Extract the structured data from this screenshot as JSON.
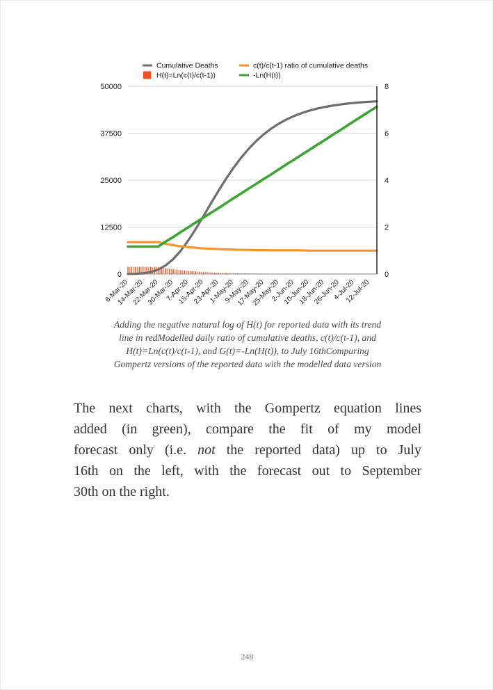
{
  "page": {
    "number": "248"
  },
  "caption": {
    "lines": [
      "Adding the negative natural log of H(t) for reported data with its trend",
      "line in redModelled daily ratio of cumulative deaths, c(t)/c(t-1), and",
      "H(t)=Ln(c(t)/c(t-1), and G(t)=-Ln(H(t)), to July 16thComparing",
      "Gompertz versions of the reported data with the modelled data version"
    ]
  },
  "body": {
    "line1": "The next charts, with the Gompertz equation lines",
    "line2": "added (in green), compare the fit of my model",
    "line3_before": "forecast only (i.e. ",
    "line3_em": "not",
    "line3_after": " the reported data) up to July",
    "line4": "16th on the left, with the forecast out to September",
    "line5": "30th on the right."
  },
  "chart_data": {
    "type": "combo",
    "title": "",
    "legend_position": "top",
    "grid": true,
    "x_tick_labels": [
      "6-Mar-20",
      "14-Mar-20",
      "22-Mar-20",
      "30-Mar-20",
      "7-Apr-20",
      "15-Apr-20",
      "23-Apr-20",
      "1-May-20",
      "9-May-20",
      "17-May-20",
      "25-May-20",
      "2-Jun-20",
      "10-Jun-20",
      "18-Jun-20",
      "26-Jun-20",
      "4-Jul-20",
      "12-Jul-20"
    ],
    "x_tick_day_step": 8,
    "x_total_days": 132,
    "sample_days": [
      0,
      4,
      8,
      12,
      16,
      20,
      24,
      28,
      32,
      36,
      40,
      44,
      48,
      52,
      56,
      60,
      64,
      68,
      72,
      76,
      80,
      84,
      88,
      92,
      96,
      100,
      104,
      108,
      112,
      116,
      120,
      124,
      128,
      132
    ],
    "left_axis": {
      "min": 0,
      "max": 50000,
      "ticks": [
        0,
        12500,
        25000,
        37500,
        50000
      ]
    },
    "right_axis": {
      "min": 0,
      "max": 8,
      "ticks": [
        0,
        2,
        4,
        6,
        8
      ]
    },
    "series": [
      {
        "name": "Cumulative Deaths",
        "type": "line",
        "axis": "left",
        "color": "#6d6d6d",
        "width": 3.2,
        "values": [
          13,
          58,
          195,
          527,
          1185,
          2305,
          3973,
          6207,
          8941,
          12058,
          15396,
          18813,
          22166,
          25352,
          28300,
          30969,
          33336,
          35410,
          37200,
          38735,
          40041,
          41139,
          42064,
          42836,
          43478,
          44012,
          44453,
          44817,
          45118,
          45365,
          45569,
          45735,
          45872,
          45988
        ]
      },
      {
        "name": "c(t)/c(t-1) ratio of cumulative deaths",
        "type": "line",
        "axis": "right",
        "color": "#f79428",
        "width": 3.2,
        "values": [
          1.36,
          1.36,
          1.36,
          1.36,
          1.36,
          1.29,
          1.23,
          1.18,
          1.15,
          1.12,
          1.09,
          1.08,
          1.06,
          1.05,
          1.04,
          1.03,
          1.03,
          1.02,
          1.02,
          1.01,
          1.01,
          1.01,
          1.01,
          1.01,
          1.0,
          1.0,
          1.0,
          1.0,
          1.0,
          1.0,
          1.0,
          1.0,
          1.0,
          1.0
        ]
      },
      {
        "name": "H(t)=Ln(c(t)/c(t-1))",
        "type": "bar",
        "axis": "right",
        "color": "#e2522a",
        "color_alt": "#ef8a50",
        "legend_color": "#f4511e",
        "values": [
          0.31,
          0.31,
          0.31,
          0.31,
          0.31,
          0.25,
          0.21,
          0.17,
          0.14,
          0.11,
          0.09,
          0.074,
          0.06,
          0.049,
          0.04,
          0.032,
          0.026,
          0.021,
          0.017,
          0.014,
          0.012,
          0.009,
          0.008,
          0.006,
          0.005,
          0.004,
          0.003,
          0.003,
          0.002,
          0.002,
          0.001,
          0.001,
          0.001,
          0.001
        ]
      },
      {
        "name": "-Ln(H(t))",
        "type": "line",
        "axis": "right",
        "color": "#3aa52f",
        "width": 3.6,
        "values": [
          1.17,
          1.17,
          1.17,
          1.17,
          1.17,
          1.38,
          1.58,
          1.79,
          1.99,
          2.2,
          2.4,
          2.61,
          2.81,
          3.02,
          3.23,
          3.43,
          3.64,
          3.84,
          4.05,
          4.25,
          4.46,
          4.67,
          4.87,
          5.08,
          5.28,
          5.49,
          5.69,
          5.9,
          6.1,
          6.31,
          6.52,
          6.72,
          6.93,
          7.13
        ]
      }
    ]
  }
}
